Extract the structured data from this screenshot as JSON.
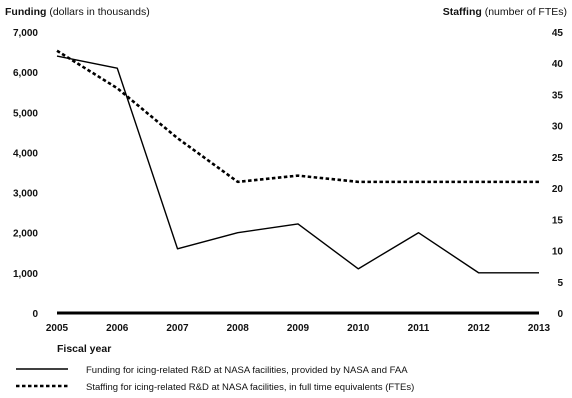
{
  "chart_data": {
    "type": "line",
    "left_axis": {
      "title_bold": "Funding",
      "title_rest": "(dollars in thousands)",
      "ylim": [
        0,
        7000
      ],
      "ticks": [
        "0",
        "1,000",
        "2,000",
        "3,000",
        "4,000",
        "5,000",
        "6,000",
        "7,000"
      ]
    },
    "right_axis": {
      "title_bold": "Staffing",
      "title_rest": "(number of FTEs)",
      "ylim": [
        0,
        45
      ],
      "ticks": [
        "0",
        "5",
        "10",
        "15",
        "20",
        "25",
        "30",
        "35",
        "40",
        "45"
      ]
    },
    "xlabel": "Fiscal year",
    "categories": [
      "2005",
      "2006",
      "2007",
      "2008",
      "2009",
      "2010",
      "2011",
      "2012",
      "2013"
    ],
    "series": [
      {
        "name": "Funding for icing-related R&D at NASA facilities, provided by NASA and FAA",
        "axis": "left",
        "style": "solid",
        "values": [
          6400,
          6100,
          1600,
          2000,
          2220,
          1100,
          2000,
          1000,
          1000
        ]
      },
      {
        "name": "Staffing for icing-related R&D at NASA facilities, in full time equivalents (FTEs)",
        "axis": "right",
        "style": "dotted",
        "values": [
          42,
          36,
          28,
          21,
          22,
          21,
          21,
          21,
          21
        ]
      }
    ],
    "grid": false,
    "legend_position": "bottom-left"
  }
}
